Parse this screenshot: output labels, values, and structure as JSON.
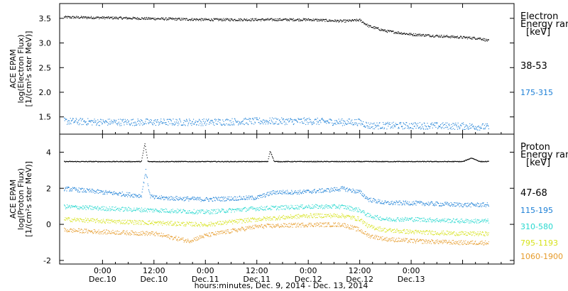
{
  "colors": {
    "black": "#000000",
    "blue": "#1b7fd6",
    "cyan": "#27d8cf",
    "yellow": "#d6e21a",
    "orange": "#e69b2a"
  },
  "chart_data": [
    {
      "type": "scatter",
      "panel": "electron",
      "ylabel_lines": [
        "ACE EPAM",
        "log(Electron Flux)",
        "[1/(cm²s ster MeV)]"
      ],
      "ylim": [
        1.15,
        3.8
      ],
      "y_ticks": [
        1.5,
        2.0,
        2.5,
        3.0,
        3.5
      ],
      "y_tick_labels": [
        "1.5",
        "2.0",
        "2.5",
        "3.0",
        "3.5"
      ],
      "legend_title": [
        "Electron",
        "Energy ran",
        "[keV]"
      ],
      "series": [
        {
          "name": "38-53",
          "color": "#000000",
          "points": [
            [
              -9,
              3.53
            ],
            [
              0,
              3.52
            ],
            [
              12,
              3.5
            ],
            [
              24,
              3.48
            ],
            [
              36,
              3.48
            ],
            [
              48,
              3.48
            ],
            [
              56,
              3.45
            ],
            [
              60,
              3.47
            ],
            [
              62,
              3.35
            ],
            [
              66,
              3.25
            ],
            [
              72,
              3.18
            ],
            [
              84,
              3.12
            ],
            [
              88,
              3.1
            ],
            [
              90,
              3.05
            ]
          ]
        },
        {
          "name": "175-315",
          "color": "#1b7fd6",
          "points": [
            [
              -9,
              1.42
            ],
            [
              0,
              1.4
            ],
            [
              12,
              1.4
            ],
            [
              24,
              1.4
            ],
            [
              36,
              1.42
            ],
            [
              48,
              1.42
            ],
            [
              56,
              1.4
            ],
            [
              60,
              1.4
            ],
            [
              62,
              1.33
            ],
            [
              72,
              1.33
            ],
            [
              84,
              1.32
            ],
            [
              90,
              1.3
            ]
          ]
        }
      ]
    },
    {
      "type": "scatter",
      "panel": "proton",
      "ylabel_lines": [
        "ACE EPAM",
        "log(Proton Flux)",
        "[1/(cm²s ster MeV)]"
      ],
      "ylim": [
        -2.2,
        5.0
      ],
      "y_ticks": [
        -2,
        0,
        2,
        4
      ],
      "y_tick_labels": [
        "-2",
        "0",
        "2",
        "4"
      ],
      "legend_title": [
        "Proton",
        "Energy ran",
        "[keV]"
      ],
      "series": [
        {
          "name": "47-68",
          "color": "#000000",
          "points": [
            [
              -9,
              3.5
            ],
            [
              9,
              3.5
            ],
            [
              9.8,
              4.5
            ],
            [
              10.5,
              3.5
            ],
            [
              24,
              3.5
            ],
            [
              36,
              3.5
            ],
            [
              38.5,
              3.5
            ],
            [
              39,
              4.1
            ],
            [
              40,
              3.5
            ],
            [
              48,
              3.5
            ],
            [
              60,
              3.5
            ],
            [
              72,
              3.5
            ],
            [
              84,
              3.5
            ],
            [
              86,
              3.7
            ],
            [
              88,
              3.5
            ],
            [
              90,
              3.5
            ]
          ]
        },
        {
          "name": "115-195",
          "color": "#1b7fd6",
          "points": [
            [
              -9,
              2.0
            ],
            [
              0,
              1.8
            ],
            [
              9,
              1.6
            ],
            [
              10,
              3.0
            ],
            [
              11,
              1.6
            ],
            [
              12,
              1.5
            ],
            [
              24,
              1.4
            ],
            [
              36,
              1.5
            ],
            [
              40,
              1.8
            ],
            [
              46,
              1.8
            ],
            [
              52,
              1.9
            ],
            [
              56,
              2.0
            ],
            [
              60,
              1.8
            ],
            [
              62,
              1.4
            ],
            [
              66,
              1.2
            ],
            [
              72,
              1.2
            ],
            [
              84,
              1.1
            ],
            [
              90,
              1.1
            ]
          ]
        },
        {
          "name": "310-580",
          "color": "#27d8cf",
          "points": [
            [
              -9,
              1.0
            ],
            [
              0,
              0.9
            ],
            [
              12,
              0.8
            ],
            [
              24,
              0.7
            ],
            [
              36,
              0.9
            ],
            [
              48,
              1.0
            ],
            [
              56,
              1.0
            ],
            [
              60,
              0.8
            ],
            [
              62,
              0.5
            ],
            [
              66,
              0.3
            ],
            [
              72,
              0.3
            ],
            [
              84,
              0.2
            ],
            [
              90,
              0.2
            ]
          ]
        },
        {
          "name": "795-1193",
          "color": "#d6e21a",
          "points": [
            [
              -9,
              0.3
            ],
            [
              0,
              0.2
            ],
            [
              12,
              0.1
            ],
            [
              24,
              0.0
            ],
            [
              36,
              0.3
            ],
            [
              48,
              0.5
            ],
            [
              56,
              0.5
            ],
            [
              60,
              0.3
            ],
            [
              62,
              -0.1
            ],
            [
              66,
              -0.3
            ],
            [
              72,
              -0.4
            ],
            [
              84,
              -0.5
            ],
            [
              90,
              -0.5
            ]
          ]
        },
        {
          "name": "1060-1900",
          "color": "#e69b2a",
          "points": [
            [
              -9,
              -0.3
            ],
            [
              0,
              -0.4
            ],
            [
              12,
              -0.5
            ],
            [
              20,
              -0.9
            ],
            [
              24,
              -0.6
            ],
            [
              36,
              -0.1
            ],
            [
              48,
              0.0
            ],
            [
              56,
              0.0
            ],
            [
              60,
              -0.3
            ],
            [
              62,
              -0.6
            ],
            [
              66,
              -0.8
            ],
            [
              72,
              -0.9
            ],
            [
              84,
              -1.0
            ],
            [
              90,
              -1.0
            ]
          ]
        }
      ]
    }
  ],
  "x_axis": {
    "xlim_hours": [
      -10,
      96
    ],
    "ticks_hours": [
      0,
      12,
      24,
      36,
      48,
      60,
      72,
      84,
      96
    ],
    "tick_labels_time": [
      "0:00",
      "12:00",
      "0:00",
      "12:00",
      "0:00",
      "12:00",
      "0:00"
    ],
    "tick_labels_day": [
      "Dec.10",
      "Dec.10",
      "Dec.11",
      "Dec.11",
      "Dec.12",
      "Dec.12",
      "Dec.13"
    ],
    "label_hours": [
      0,
      12,
      24,
      36,
      48,
      60,
      72
    ],
    "title": "hours:minutes, Dec. 9, 2014 - Dec. 13, 2014"
  }
}
